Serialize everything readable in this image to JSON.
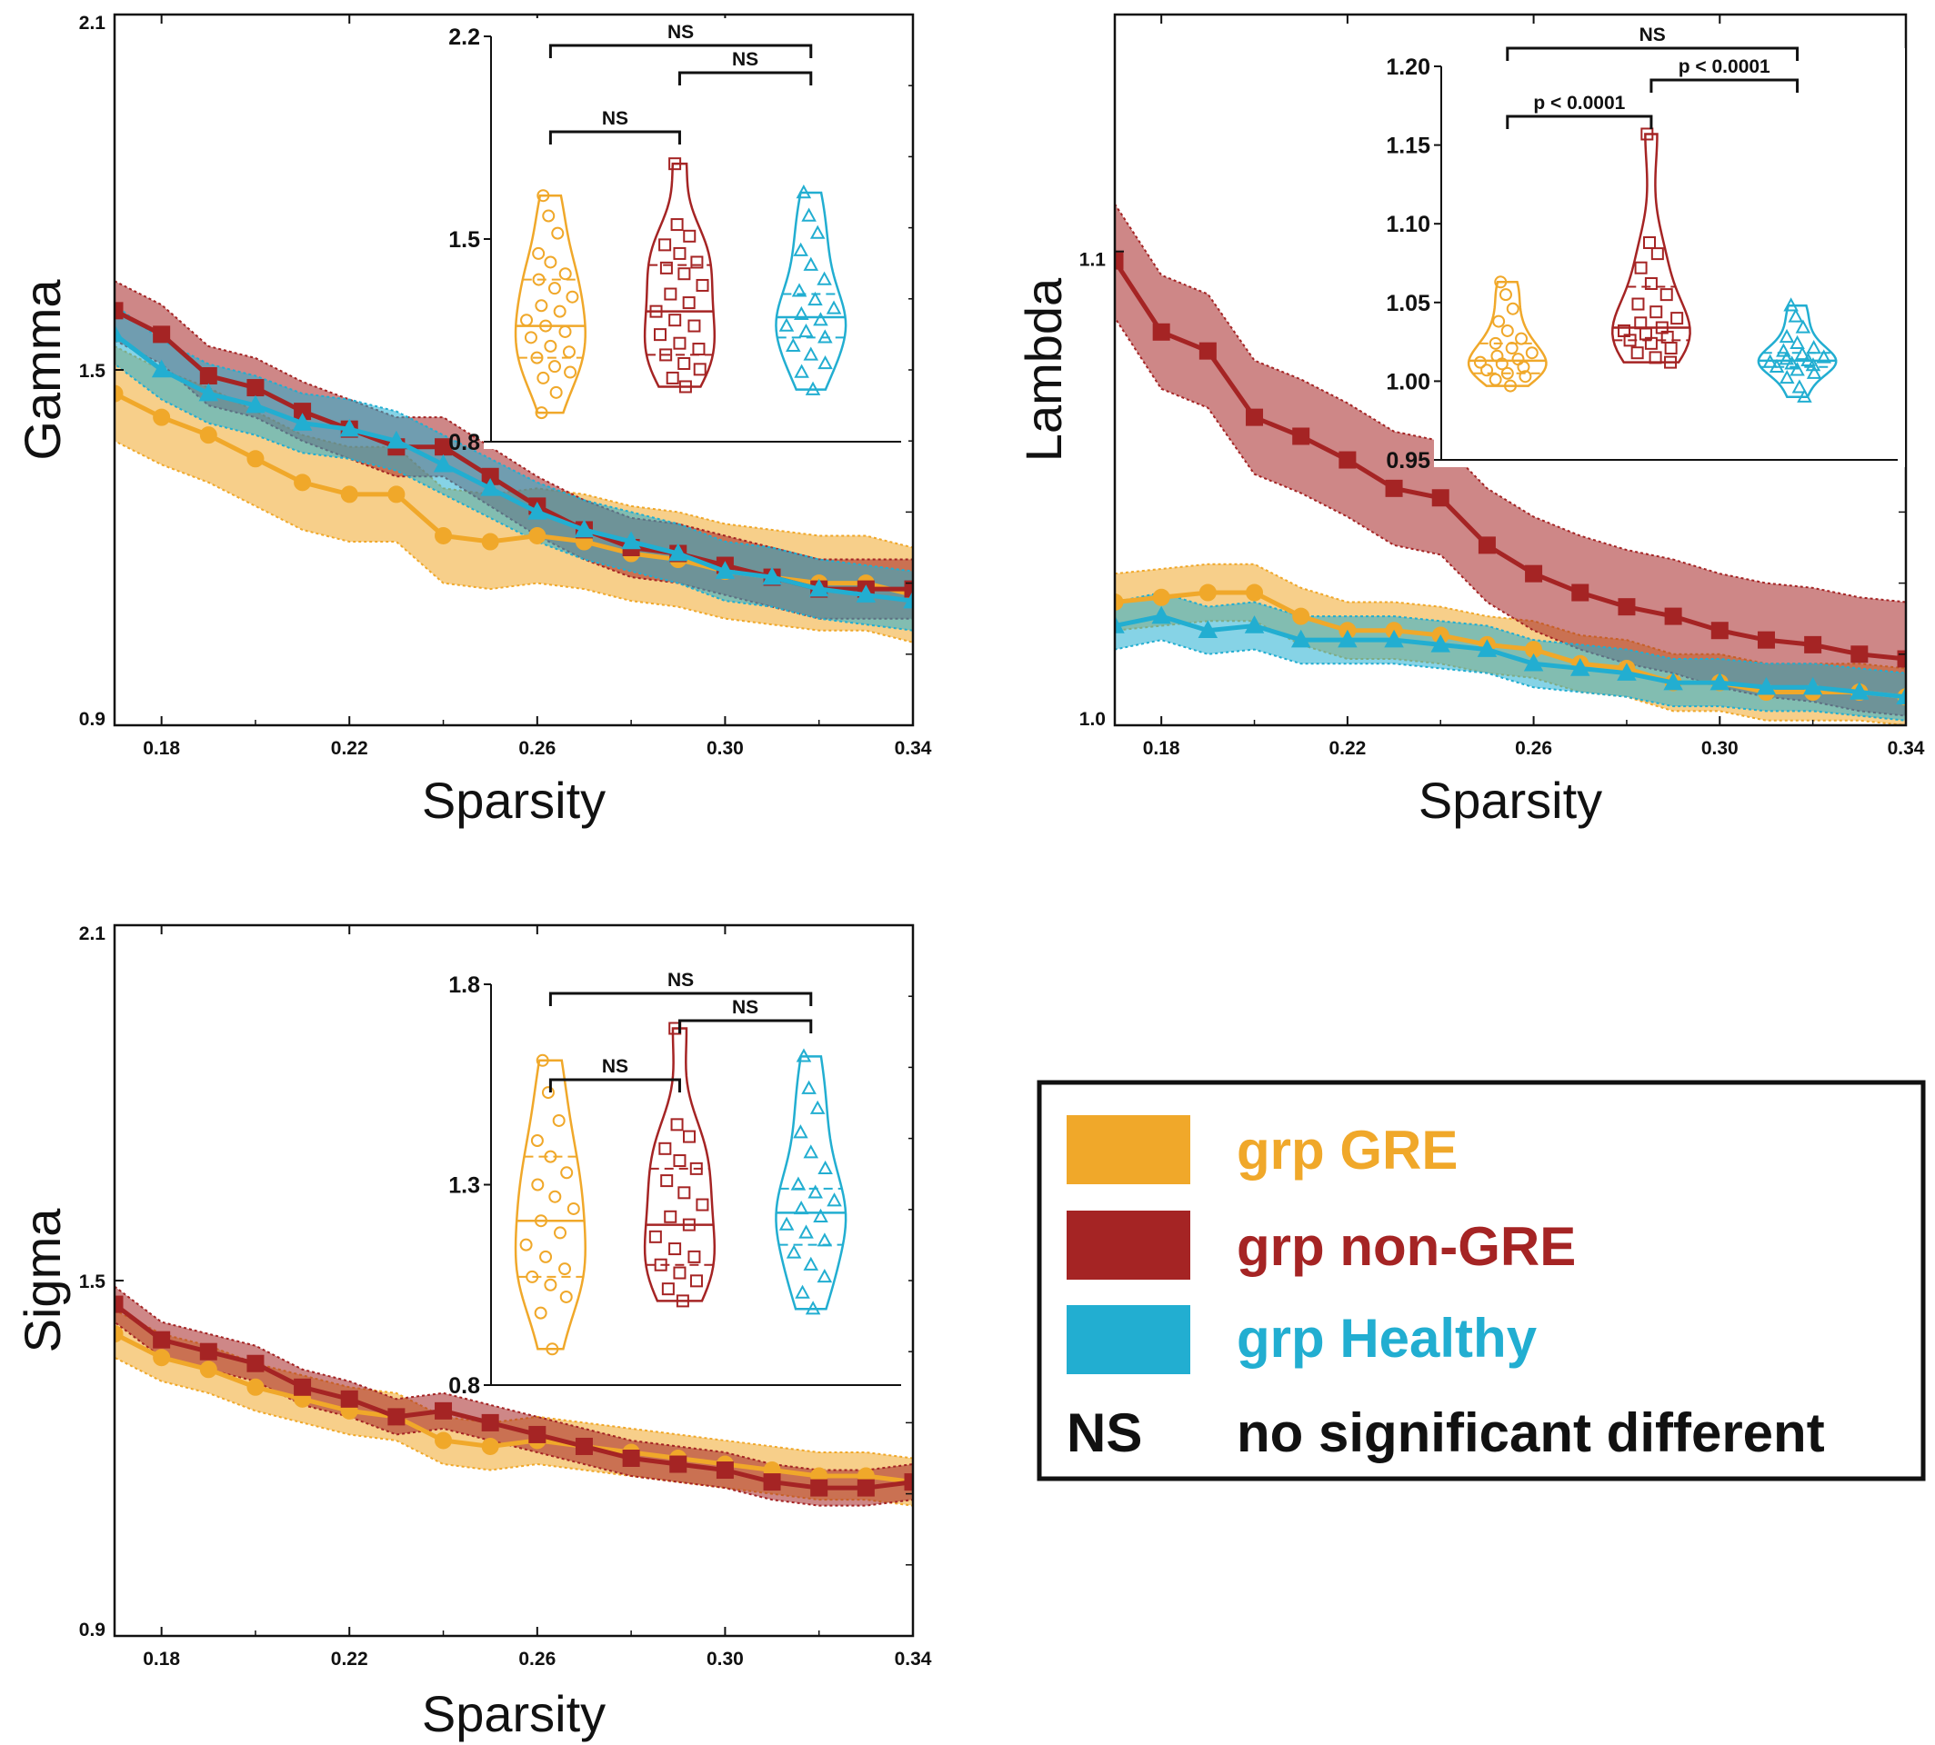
{
  "colors": {
    "gre": "#f0a82a",
    "nongre": "#a52424",
    "healthy": "#22aed1",
    "text": "#111111"
  },
  "legend": {
    "items": [
      {
        "label": "grp GRE",
        "color": "#f0a82a"
      },
      {
        "label": "grp non-GRE",
        "color": "#a52424"
      },
      {
        "label": "grp Healthy",
        "color": "#22aed1"
      }
    ],
    "ns_abbrev": "NS",
    "ns_text": "no significant different"
  },
  "chart_data": [
    {
      "id": "gamma",
      "type": "line",
      "xlabel": "Sparsity",
      "ylabel": "Gamma",
      "xlim": [
        0.17,
        0.34
      ],
      "ylim": [
        0.9,
        2.1
      ],
      "xticks": [
        "0.18",
        "0.22",
        "0.26",
        "0.30",
        "0.34"
      ],
      "xtick_values": [
        0.18,
        0.22,
        0.26,
        0.3,
        0.34
      ],
      "yticks": [
        "0.9",
        "1.5",
        "2.1"
      ],
      "ytick_values": [
        0.9,
        1.5,
        2.1
      ],
      "x": [
        0.17,
        0.18,
        0.19,
        0.2,
        0.21,
        0.22,
        0.23,
        0.24,
        0.25,
        0.26,
        0.27,
        0.28,
        0.29,
        0.3,
        0.31,
        0.32,
        0.33,
        0.34
      ],
      "series": [
        {
          "name": "grp GRE",
          "marker": "circle",
          "values": [
            1.46,
            1.42,
            1.39,
            1.35,
            1.31,
            1.29,
            1.29,
            1.22,
            1.21,
            1.22,
            1.21,
            1.19,
            1.18,
            1.16,
            1.15,
            1.14,
            1.14,
            1.12
          ],
          "band": 0.08
        },
        {
          "name": "grp non-GRE",
          "marker": "square",
          "values": [
            1.6,
            1.56,
            1.49,
            1.47,
            1.43,
            1.4,
            1.37,
            1.37,
            1.32,
            1.27,
            1.23,
            1.2,
            1.19,
            1.17,
            1.15,
            1.13,
            1.13,
            1.13
          ],
          "band": 0.05
        },
        {
          "name": "grp Healthy",
          "marker": "triangle",
          "values": [
            1.56,
            1.5,
            1.46,
            1.44,
            1.41,
            1.4,
            1.38,
            1.34,
            1.3,
            1.26,
            1.23,
            1.21,
            1.19,
            1.16,
            1.15,
            1.13,
            1.12,
            1.11
          ],
          "band": 0.05
        }
      ],
      "inset": {
        "ylim": [
          0.8,
          2.2
        ],
        "yticks": [
          "0.8",
          "1.5",
          "2.2"
        ],
        "ytick_values": [
          0.8,
          1.5,
          2.2
        ],
        "groups": [
          {
            "name": "grp GRE",
            "min": 0.9,
            "max": 1.65,
            "median": 1.2,
            "q1": 1.09,
            "q3": 1.36,
            "points": [
              1.65,
              1.58,
              1.52,
              1.45,
              1.42,
              1.38,
              1.36,
              1.33,
              1.3,
              1.27,
              1.25,
              1.22,
              1.2,
              1.18,
              1.16,
              1.13,
              1.11,
              1.09,
              1.06,
              1.04,
              1.02,
              0.97,
              0.9
            ]
          },
          {
            "name": "grp non-GRE",
            "min": 0.99,
            "max": 1.76,
            "median": 1.25,
            "q1": 1.1,
            "q3": 1.41,
            "points": [
              1.76,
              1.55,
              1.51,
              1.48,
              1.45,
              1.42,
              1.4,
              1.38,
              1.34,
              1.31,
              1.28,
              1.25,
              1.22,
              1.2,
              1.17,
              1.14,
              1.12,
              1.1,
              1.07,
              1.05,
              1.02,
              0.99
            ]
          },
          {
            "name": "grp Healthy",
            "min": 0.98,
            "max": 1.66,
            "median": 1.23,
            "q1": 1.16,
            "q3": 1.31,
            "points": [
              1.66,
              1.58,
              1.52,
              1.46,
              1.41,
              1.36,
              1.32,
              1.29,
              1.26,
              1.24,
              1.22,
              1.2,
              1.18,
              1.16,
              1.13,
              1.1,
              1.07,
              1.04,
              0.98
            ]
          }
        ],
        "comparisons": [
          {
            "from": 0,
            "to": 1,
            "label": "NS",
            "level": 1
          },
          {
            "from": 1,
            "to": 2,
            "label": "NS",
            "level": 2
          },
          {
            "from": 0,
            "to": 2,
            "label": "NS",
            "level": 3
          }
        ]
      }
    },
    {
      "id": "lambda",
      "type": "line",
      "xlabel": "Sparsity",
      "ylabel": "Lambda",
      "xlim": [
        0.17,
        0.34
      ],
      "ylim": [
        1.0,
        1.15
      ],
      "xticks": [
        "0.18",
        "0.22",
        "0.26",
        "0.30",
        "0.34"
      ],
      "xtick_values": [
        0.18,
        0.22,
        0.26,
        0.3,
        0.34
      ],
      "yticks": [
        "1.0",
        "1.1"
      ],
      "ytick_values": [
        1.0,
        1.1
      ],
      "x": [
        0.17,
        0.18,
        0.19,
        0.2,
        0.21,
        0.22,
        0.23,
        0.24,
        0.25,
        0.26,
        0.27,
        0.28,
        0.29,
        0.3,
        0.31,
        0.32,
        0.33,
        0.34
      ],
      "series": [
        {
          "name": "grp GRE",
          "marker": "circle",
          "values": [
            1.026,
            1.027,
            1.028,
            1.028,
            1.023,
            1.02,
            1.02,
            1.019,
            1.017,
            1.016,
            1.013,
            1.012,
            1.009,
            1.009,
            1.007,
            1.007,
            1.007,
            1.006
          ],
          "band": 0.006
        },
        {
          "name": "grp non-GRE",
          "marker": "square",
          "values": [
            1.098,
            1.083,
            1.079,
            1.065,
            1.061,
            1.056,
            1.05,
            1.048,
            1.038,
            1.032,
            1.028,
            1.025,
            1.023,
            1.02,
            1.018,
            1.017,
            1.015,
            1.014
          ],
          "band": 0.012
        },
        {
          "name": "grp Healthy",
          "marker": "triangle",
          "values": [
            1.021,
            1.023,
            1.02,
            1.021,
            1.018,
            1.018,
            1.018,
            1.017,
            1.016,
            1.013,
            1.012,
            1.011,
            1.009,
            1.009,
            1.008,
            1.008,
            1.007,
            1.006
          ],
          "band": 0.005
        }
      ],
      "inset": {
        "ylim": [
          0.95,
          1.2
        ],
        "yticks": [
          "0.95",
          "1.00",
          "1.05",
          "1.10",
          "1.15",
          "1.20"
        ],
        "ytick_values": [
          0.95,
          1.0,
          1.05,
          1.1,
          1.15,
          1.2
        ],
        "groups": [
          {
            "name": "grp GRE",
            "min": 0.997,
            "max": 1.063,
            "median": 1.013,
            "q1": 1.005,
            "q3": 1.024,
            "points": [
              1.063,
              1.055,
              1.046,
              1.038,
              1.032,
              1.027,
              1.024,
              1.021,
              1.018,
              1.016,
              1.014,
              1.012,
              1.011,
              1.009,
              1.007,
              1.005,
              1.003,
              1.001,
              0.997
            ]
          },
          {
            "name": "grp non-GRE",
            "min": 1.012,
            "max": 1.157,
            "median": 1.034,
            "q1": 1.026,
            "q3": 1.06,
            "points": [
              1.157,
              1.088,
              1.081,
              1.072,
              1.062,
              1.055,
              1.049,
              1.044,
              1.04,
              1.037,
              1.034,
              1.032,
              1.03,
              1.028,
              1.026,
              1.024,
              1.021,
              1.018,
              1.015,
              1.012
            ]
          },
          {
            "name": "grp Healthy",
            "min": 0.99,
            "max": 1.048,
            "median": 1.013,
            "q1": 1.009,
            "q3": 1.018,
            "points": [
              1.048,
              1.041,
              1.034,
              1.028,
              1.024,
              1.021,
              1.019,
              1.017,
              1.015,
              1.014,
              1.013,
              1.012,
              1.011,
              1.01,
              1.009,
              1.007,
              1.005,
              1.002,
              0.996,
              0.99
            ]
          }
        ],
        "comparisons": [
          {
            "from": 0,
            "to": 1,
            "label": "p < 0.0001",
            "level": 1
          },
          {
            "from": 1,
            "to": 2,
            "label": "p < 0.0001",
            "level": 2
          },
          {
            "from": 0,
            "to": 2,
            "label": "NS",
            "level": 3
          }
        ]
      }
    },
    {
      "id": "sigma",
      "type": "line",
      "xlabel": "Sparsity",
      "ylabel": "Sigma",
      "xlim": [
        0.17,
        0.34
      ],
      "ylim": [
        0.9,
        2.1
      ],
      "xticks": [
        "0.18",
        "0.22",
        "0.26",
        "0.30",
        "0.34"
      ],
      "xtick_values": [
        0.18,
        0.22,
        0.26,
        0.3,
        0.34
      ],
      "yticks": [
        "0.9",
        "1.5",
        "2.1"
      ],
      "ytick_values": [
        0.9,
        1.5,
        2.1
      ],
      "x": [
        0.17,
        0.18,
        0.19,
        0.2,
        0.21,
        0.22,
        0.23,
        0.24,
        0.25,
        0.26,
        0.27,
        0.28,
        0.29,
        0.3,
        0.31,
        0.32,
        0.33,
        0.34
      ],
      "series": [
        {
          "name": "grp GRE",
          "marker": "circle",
          "values": [
            1.41,
            1.37,
            1.35,
            1.32,
            1.3,
            1.28,
            1.27,
            1.23,
            1.22,
            1.23,
            1.22,
            1.21,
            1.2,
            1.19,
            1.18,
            1.17,
            1.17,
            1.16
          ],
          "band": 0.04
        },
        {
          "name": "grp non-GRE",
          "marker": "square",
          "values": [
            1.46,
            1.4,
            1.38,
            1.36,
            1.32,
            1.3,
            1.27,
            1.28,
            1.26,
            1.24,
            1.22,
            1.2,
            1.19,
            1.18,
            1.16,
            1.15,
            1.15,
            1.16
          ],
          "band": 0.03
        }
      ],
      "inset": {
        "ylim": [
          0.8,
          1.8
        ],
        "yticks": [
          "0.8",
          "1.3",
          "1.8"
        ],
        "ytick_values": [
          0.8,
          1.3,
          1.8
        ],
        "groups": [
          {
            "name": "grp GRE",
            "min": 0.89,
            "max": 1.61,
            "median": 1.21,
            "q1": 1.07,
            "q3": 1.37,
            "points": [
              1.61,
              1.53,
              1.46,
              1.41,
              1.37,
              1.33,
              1.3,
              1.27,
              1.24,
              1.21,
              1.18,
              1.15,
              1.12,
              1.09,
              1.07,
              1.05,
              1.02,
              0.98,
              0.89
            ]
          },
          {
            "name": "grp non-GRE",
            "min": 1.01,
            "max": 1.69,
            "median": 1.2,
            "q1": 1.1,
            "q3": 1.34,
            "points": [
              1.69,
              1.45,
              1.42,
              1.39,
              1.36,
              1.34,
              1.31,
              1.28,
              1.25,
              1.22,
              1.2,
              1.17,
              1.14,
              1.12,
              1.1,
              1.08,
              1.06,
              1.04,
              1.01
            ]
          },
          {
            "name": "grp Healthy",
            "min": 0.99,
            "max": 1.62,
            "median": 1.23,
            "q1": 1.15,
            "q3": 1.29,
            "points": [
              1.62,
              1.54,
              1.49,
              1.43,
              1.38,
              1.34,
              1.3,
              1.28,
              1.26,
              1.24,
              1.22,
              1.2,
              1.18,
              1.16,
              1.13,
              1.1,
              1.07,
              1.03,
              0.99
            ]
          }
        ],
        "comparisons": [
          {
            "from": 0,
            "to": 1,
            "label": "NS",
            "level": 1
          },
          {
            "from": 1,
            "to": 2,
            "label": "NS",
            "level": 2
          },
          {
            "from": 0,
            "to": 2,
            "label": "NS",
            "level": 3
          }
        ]
      }
    }
  ]
}
